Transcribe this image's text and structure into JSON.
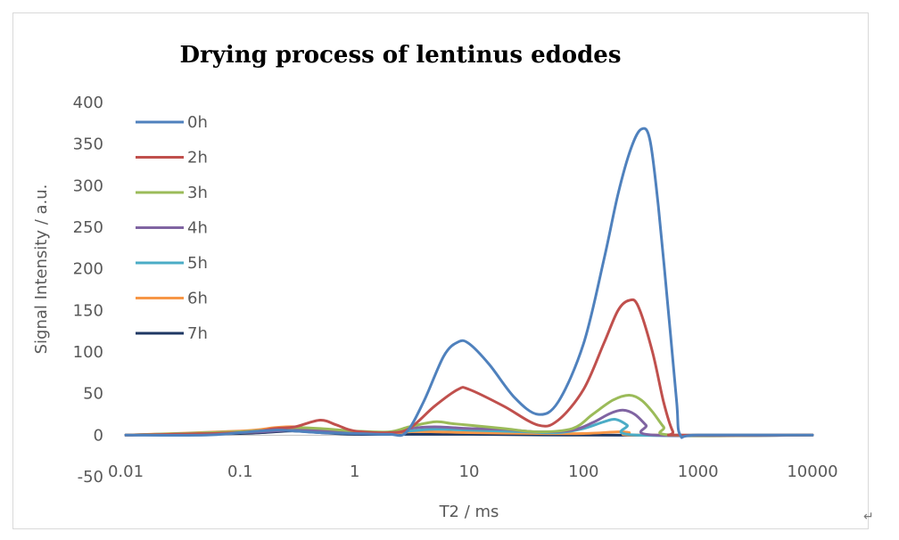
{
  "chart_data": {
    "type": "line",
    "title": "Drying process of lentinus edodes",
    "xlabel": "T2 / ms",
    "ylabel": "Signal Intensity / a.u.",
    "x_scale": "log",
    "xlim": [
      0.01,
      10000
    ],
    "ylim": [
      -50,
      400
    ],
    "x_ticks": [
      0.01,
      0.1,
      1,
      10,
      100,
      1000,
      10000
    ],
    "x_tick_labels": [
      "0.01",
      "0.1",
      "1",
      "10",
      "100",
      "1000",
      "10000"
    ],
    "y_ticks": [
      -50,
      0,
      50,
      100,
      150,
      200,
      250,
      300,
      350,
      400
    ],
    "y_tick_labels": [
      "-50",
      "0",
      "50",
      "100",
      "150",
      "200",
      "250",
      "300",
      "350",
      "400"
    ],
    "grid": false,
    "legend_position": "top-left",
    "series": [
      {
        "name": "0h",
        "color": "#4f81bd",
        "points": [
          [
            0.01,
            0
          ],
          [
            0.05,
            0
          ],
          [
            0.1,
            3
          ],
          [
            0.2,
            6
          ],
          [
            0.3,
            5
          ],
          [
            0.5,
            3
          ],
          [
            1,
            2
          ],
          [
            2,
            1
          ],
          [
            2.8,
            3
          ],
          [
            4,
            40
          ],
          [
            6,
            95
          ],
          [
            8,
            112
          ],
          [
            10,
            110
          ],
          [
            15,
            85
          ],
          [
            25,
            45
          ],
          [
            40,
            25
          ],
          [
            60,
            40
          ],
          [
            100,
            110
          ],
          [
            150,
            210
          ],
          [
            200,
            290
          ],
          [
            260,
            345
          ],
          [
            320,
            368
          ],
          [
            380,
            355
          ],
          [
            450,
            275
          ],
          [
            550,
            150
          ],
          [
            650,
            40
          ],
          [
            700,
            0
          ],
          [
            1000,
            0
          ],
          [
            10000,
            0
          ]
        ]
      },
      {
        "name": "2h",
        "color": "#c0504d",
        "points": [
          [
            0.01,
            0
          ],
          [
            0.1,
            3
          ],
          [
            0.2,
            8
          ],
          [
            0.3,
            10
          ],
          [
            0.5,
            18
          ],
          [
            0.7,
            12
          ],
          [
            1,
            5
          ],
          [
            2,
            3
          ],
          [
            3,
            8
          ],
          [
            5,
            35
          ],
          [
            8,
            55
          ],
          [
            10,
            55
          ],
          [
            20,
            35
          ],
          [
            40,
            12
          ],
          [
            60,
            18
          ],
          [
            100,
            55
          ],
          [
            150,
            110
          ],
          [
            200,
            150
          ],
          [
            250,
            162
          ],
          [
            300,
            155
          ],
          [
            400,
            100
          ],
          [
            500,
            40
          ],
          [
            600,
            5
          ],
          [
            700,
            0
          ],
          [
            10000,
            0
          ]
        ]
      },
      {
        "name": "3h",
        "color": "#9bbb59",
        "points": [
          [
            0.01,
            0
          ],
          [
            0.1,
            4
          ],
          [
            0.2,
            7
          ],
          [
            0.3,
            9
          ],
          [
            0.5,
            8
          ],
          [
            1,
            5
          ],
          [
            2,
            4
          ],
          [
            3,
            10
          ],
          [
            5,
            16
          ],
          [
            7,
            14
          ],
          [
            10,
            12
          ],
          [
            20,
            8
          ],
          [
            40,
            4
          ],
          [
            80,
            8
          ],
          [
            120,
            25
          ],
          [
            180,
            42
          ],
          [
            250,
            48
          ],
          [
            320,
            42
          ],
          [
            400,
            28
          ],
          [
            500,
            10
          ],
          [
            600,
            0
          ],
          [
            10000,
            0
          ]
        ]
      },
      {
        "name": "4h",
        "color": "#8064a2",
        "points": [
          [
            0.01,
            0
          ],
          [
            0.1,
            3
          ],
          [
            0.2,
            5
          ],
          [
            0.3,
            6
          ],
          [
            0.5,
            5
          ],
          [
            1,
            3
          ],
          [
            2,
            3
          ],
          [
            3,
            8
          ],
          [
            5,
            10
          ],
          [
            10,
            8
          ],
          [
            20,
            7
          ],
          [
            40,
            4
          ],
          [
            80,
            6
          ],
          [
            120,
            15
          ],
          [
            170,
            26
          ],
          [
            220,
            30
          ],
          [
            280,
            25
          ],
          [
            350,
            12
          ],
          [
            420,
            0
          ],
          [
            10000,
            0
          ]
        ]
      },
      {
        "name": "5h",
        "color": "#4bacc6",
        "points": [
          [
            0.01,
            0
          ],
          [
            0.1,
            4
          ],
          [
            0.2,
            7
          ],
          [
            0.3,
            8
          ],
          [
            0.5,
            6
          ],
          [
            1,
            4
          ],
          [
            2,
            3
          ],
          [
            3,
            5
          ],
          [
            5,
            7
          ],
          [
            10,
            6
          ],
          [
            30,
            4
          ],
          [
            60,
            3
          ],
          [
            100,
            8
          ],
          [
            150,
            16
          ],
          [
            190,
            19
          ],
          [
            240,
            12
          ],
          [
            290,
            0
          ],
          [
            10000,
            0
          ]
        ]
      },
      {
        "name": "6h",
        "color": "#f79646",
        "points": [
          [
            0.01,
            0
          ],
          [
            0.1,
            5
          ],
          [
            0.2,
            9
          ],
          [
            0.3,
            10
          ],
          [
            0.5,
            6
          ],
          [
            1,
            3
          ],
          [
            2,
            2
          ],
          [
            3,
            4
          ],
          [
            5,
            4
          ],
          [
            10,
            3
          ],
          [
            40,
            2
          ],
          [
            100,
            2
          ],
          [
            200,
            4
          ],
          [
            250,
            3
          ],
          [
            300,
            0
          ],
          [
            10000,
            0
          ]
        ]
      },
      {
        "name": "7h",
        "color": "#1f3864",
        "points": [
          [
            0.01,
            0
          ],
          [
            0.1,
            2
          ],
          [
            0.2,
            4
          ],
          [
            0.3,
            5
          ],
          [
            0.5,
            3
          ],
          [
            1,
            1
          ],
          [
            3,
            1
          ],
          [
            10,
            1
          ],
          [
            100,
            0
          ],
          [
            1000,
            0
          ],
          [
            10000,
            0
          ]
        ]
      }
    ]
  }
}
